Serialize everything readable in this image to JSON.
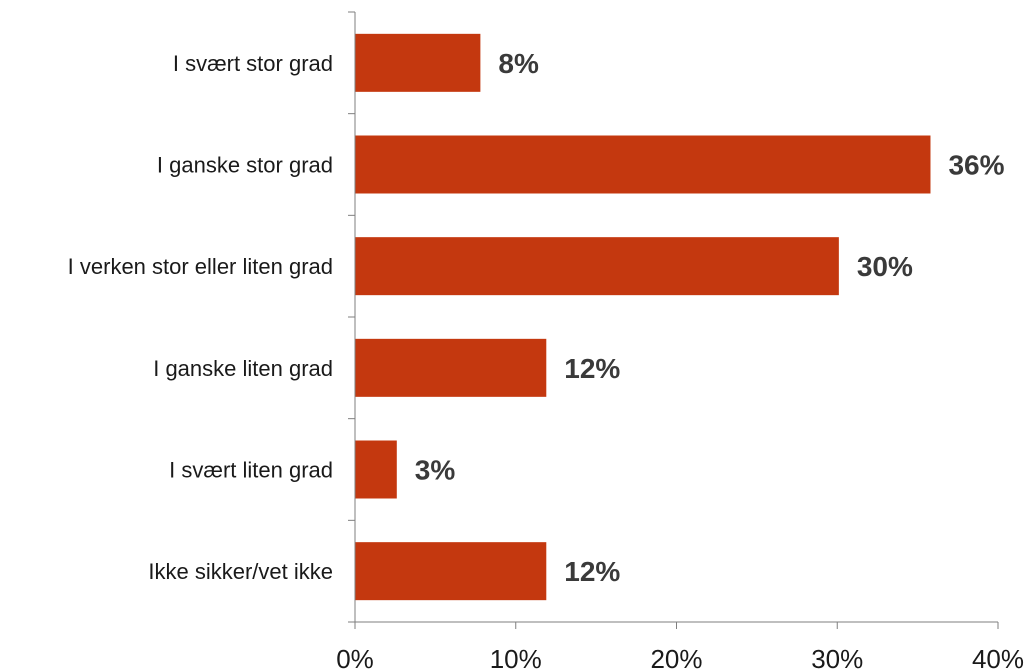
{
  "chart_data": {
    "type": "bar",
    "orientation": "horizontal",
    "categories": [
      "I svært stor grad",
      "I ganske stor grad",
      "I verken stor eller liten grad",
      "I ganske liten grad",
      "I svært liten grad",
      "Ikke sikker/vet ikke"
    ],
    "values": [
      7.8,
      35.8,
      30.1,
      11.9,
      2.6,
      11.9
    ],
    "data_labels": [
      "8%",
      "36%",
      "30%",
      "12%",
      "3%",
      "12%"
    ],
    "xlim": [
      0,
      40
    ],
    "xticks": [
      0,
      10,
      20,
      30,
      40
    ],
    "xtick_labels": [
      "0%",
      "10%",
      "20%",
      "30%",
      "40%"
    ],
    "bar_color": "#c4380f",
    "grid": false,
    "legend": "none",
    "title": "",
    "xlabel": "",
    "ylabel": ""
  }
}
